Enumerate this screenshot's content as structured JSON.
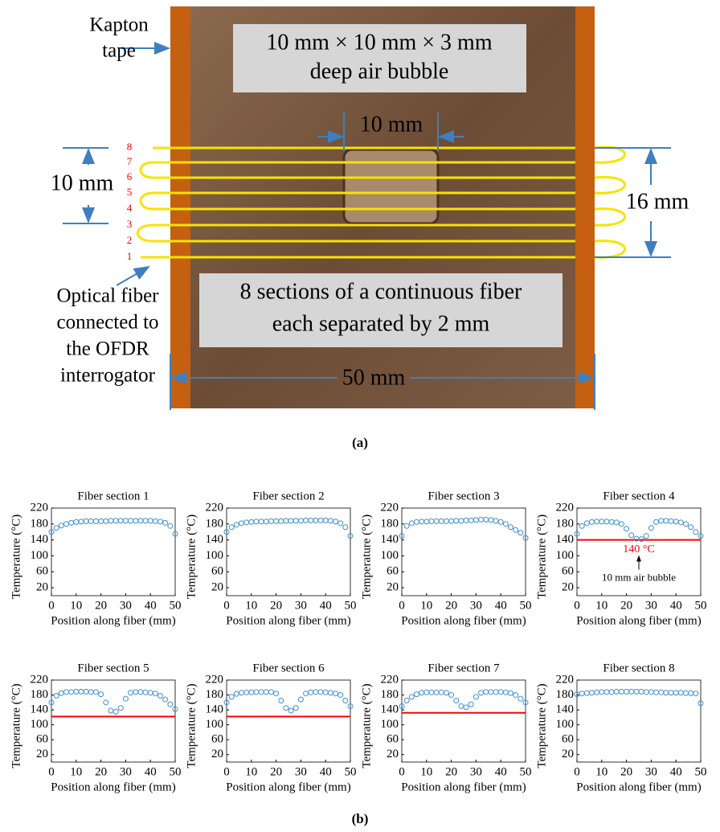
{
  "diagram": {
    "kapton": [
      "Kapton",
      "tape"
    ],
    "bubble_box": [
      "10 mm × 10 mm × 3 mm",
      "deep air bubble"
    ],
    "bubble_width": "10 mm",
    "left_span": "10 mm",
    "right_span": "16 mm",
    "bottom_span": "50 mm",
    "fiber_numbers": [
      "1",
      "2",
      "3",
      "4",
      "5",
      "6",
      "7",
      "8"
    ],
    "sections_box": [
      "8 sections of a continuous fiber",
      "each separated by 2 mm"
    ],
    "fiber_note": [
      "Optical fiber",
      "connected to",
      "the OFDR",
      "interrogator"
    ]
  },
  "captions": {
    "a": "(a)",
    "b": "(b)"
  },
  "chart_data": [
    {
      "type": "scatter",
      "title": "Fiber section 1",
      "x_label": "Position along fiber (mm)",
      "y_label": "Temperature (°C)",
      "x": [
        0,
        2,
        4,
        6,
        8,
        10,
        12,
        14,
        16,
        18,
        20,
        22,
        24,
        26,
        28,
        30,
        32,
        34,
        36,
        38,
        40,
        42,
        44,
        46,
        48,
        50
      ],
      "series": [
        {
          "color": "#3d8fd1",
          "values": [
            160,
            170,
            176,
            180,
            183,
            185,
            186,
            187,
            187,
            187,
            187,
            187,
            188,
            188,
            188,
            188,
            188,
            188,
            188,
            188,
            188,
            187,
            186,
            183,
            175,
            155
          ]
        }
      ],
      "xlim": [
        0,
        50
      ],
      "ylim": [
        0,
        220
      ],
      "xticks": [
        0,
        10,
        20,
        30,
        40,
        50
      ],
      "yticks": [
        20,
        60,
        100,
        140,
        180,
        220
      ]
    },
    {
      "type": "scatter",
      "title": "Fiber section 2",
      "x_label": "Position along fiber (mm)",
      "y_label": "Temperature (°C)",
      "x": [
        0,
        2,
        4,
        6,
        8,
        10,
        12,
        14,
        16,
        18,
        20,
        22,
        24,
        26,
        28,
        30,
        32,
        34,
        36,
        38,
        40,
        42,
        44,
        46,
        48,
        50
      ],
      "series": [
        {
          "color": "#3d8fd1",
          "values": [
            160,
            172,
            178,
            182,
            184,
            185,
            186,
            186,
            186,
            187,
            187,
            187,
            188,
            188,
            188,
            188,
            189,
            189,
            189,
            189,
            189,
            188,
            186,
            182,
            172,
            150
          ]
        }
      ],
      "xlim": [
        0,
        50
      ],
      "ylim": [
        0,
        220
      ],
      "xticks": [
        0,
        10,
        20,
        30,
        40,
        50
      ],
      "yticks": [
        20,
        60,
        100,
        140,
        180,
        220
      ]
    },
    {
      "type": "scatter",
      "title": "Fiber section 3",
      "x_label": "Position along fiber (mm)",
      "y_label": "Temperature (°C)",
      "x": [
        0,
        2,
        4,
        6,
        8,
        10,
        12,
        14,
        16,
        18,
        20,
        22,
        24,
        26,
        28,
        30,
        32,
        34,
        36,
        38,
        40,
        42,
        44,
        46,
        48,
        50
      ],
      "series": [
        {
          "color": "#3d8fd1",
          "values": [
            150,
            175,
            182,
            185,
            186,
            186,
            187,
            187,
            187,
            187,
            187,
            188,
            188,
            189,
            189,
            190,
            191,
            191,
            190,
            188,
            185,
            180,
            172,
            165,
            158,
            145
          ]
        }
      ],
      "xlim": [
        0,
        50
      ],
      "ylim": [
        0,
        220
      ],
      "xticks": [
        0,
        10,
        20,
        30,
        40,
        50
      ],
      "yticks": [
        20,
        60,
        100,
        140,
        180,
        220
      ]
    },
    {
      "type": "scatter",
      "title": "Fiber section 4",
      "x_label": "Position along fiber (mm)",
      "y_label": "Temperature (°C)",
      "x": [
        0,
        2,
        4,
        6,
        8,
        10,
        12,
        14,
        16,
        18,
        20,
        22,
        24,
        26,
        28,
        30,
        32,
        34,
        36,
        38,
        40,
        42,
        44,
        46,
        48,
        50
      ],
      "series": [
        {
          "color": "#3d8fd1",
          "values": [
            155,
            175,
            182,
            185,
            186,
            186,
            186,
            185,
            184,
            180,
            168,
            152,
            143,
            142,
            150,
            170,
            185,
            188,
            188,
            187,
            186,
            184,
            180,
            172,
            160,
            150
          ]
        }
      ],
      "xlim": [
        0,
        50
      ],
      "ylim": [
        0,
        220
      ],
      "xticks": [
        0,
        10,
        20,
        30,
        40,
        50
      ],
      "yticks": [
        20,
        60,
        100,
        140,
        180,
        220
      ],
      "reference_line": {
        "value": 140,
        "color": "#ff0000"
      },
      "annotations": [
        {
          "text": "140 °C",
          "color": "#ff0000"
        },
        {
          "text": "10 mm air bubble",
          "color": "#000000"
        }
      ]
    },
    {
      "type": "scatter",
      "title": "Fiber section 5",
      "x_label": "Position along fiber (mm)",
      "y_label": "Temperature (°C)",
      "x": [
        0,
        2,
        4,
        6,
        8,
        10,
        12,
        14,
        16,
        18,
        20,
        22,
        24,
        26,
        28,
        30,
        32,
        34,
        36,
        38,
        40,
        42,
        44,
        46,
        48,
        50
      ],
      "series": [
        {
          "color": "#3d8fd1",
          "values": [
            160,
            178,
            185,
            188,
            188,
            189,
            189,
            189,
            188,
            188,
            182,
            160,
            138,
            135,
            145,
            170,
            186,
            188,
            188,
            187,
            186,
            184,
            178,
            168,
            155,
            142
          ]
        }
      ],
      "xlim": [
        0,
        50
      ],
      "ylim": [
        0,
        220
      ],
      "xticks": [
        0,
        10,
        20,
        30,
        40,
        50
      ],
      "yticks": [
        20,
        60,
        100,
        140,
        180,
        220
      ],
      "reference_line": {
        "value": 122,
        "color": "#ff0000"
      }
    },
    {
      "type": "scatter",
      "title": "Fiber section 6",
      "x_label": "Position along fiber (mm)",
      "y_label": "Temperature (°C)",
      "x": [
        0,
        2,
        4,
        6,
        8,
        10,
        12,
        14,
        16,
        18,
        20,
        22,
        24,
        26,
        28,
        30,
        32,
        34,
        36,
        38,
        40,
        42,
        44,
        46,
        48,
        50
      ],
      "series": [
        {
          "color": "#3d8fd1",
          "values": [
            160,
            175,
            183,
            186,
            187,
            187,
            188,
            188,
            188,
            188,
            184,
            165,
            145,
            138,
            145,
            168,
            184,
            187,
            188,
            188,
            187,
            186,
            184,
            180,
            165,
            150
          ]
        }
      ],
      "xlim": [
        0,
        50
      ],
      "ylim": [
        0,
        220
      ],
      "xticks": [
        0,
        10,
        20,
        30,
        40,
        50
      ],
      "yticks": [
        20,
        60,
        100,
        140,
        180,
        220
      ],
      "reference_line": {
        "value": 122,
        "color": "#ff0000"
      }
    },
    {
      "type": "scatter",
      "title": "Fiber section 7",
      "x_label": "Position along fiber (mm)",
      "y_label": "Temperature (°C)",
      "x": [
        0,
        2,
        4,
        6,
        8,
        10,
        12,
        14,
        16,
        18,
        20,
        22,
        24,
        26,
        28,
        30,
        32,
        34,
        36,
        38,
        40,
        42,
        44,
        46,
        48,
        50
      ],
      "series": [
        {
          "color": "#3d8fd1",
          "values": [
            150,
            165,
            175,
            182,
            186,
            187,
            187,
            187,
            187,
            186,
            180,
            165,
            150,
            147,
            155,
            175,
            186,
            188,
            188,
            188,
            188,
            187,
            185,
            180,
            170,
            160
          ]
        }
      ],
      "xlim": [
        0,
        50
      ],
      "ylim": [
        0,
        220
      ],
      "xticks": [
        0,
        10,
        20,
        30,
        40,
        50
      ],
      "yticks": [
        20,
        60,
        100,
        140,
        180,
        220
      ],
      "reference_line": {
        "value": 132,
        "color": "#ff0000"
      }
    },
    {
      "type": "scatter",
      "title": "Fiber section 8",
      "x_label": "Position along fiber (mm)",
      "y_label": "Temperature (°C)",
      "x": [
        0,
        2,
        4,
        6,
        8,
        10,
        12,
        14,
        16,
        18,
        20,
        22,
        24,
        26,
        28,
        30,
        32,
        34,
        36,
        38,
        40,
        42,
        44,
        46,
        48,
        50
      ],
      "series": [
        {
          "color": "#3d8fd1",
          "values": [
            182,
            184,
            185,
            186,
            187,
            188,
            188,
            188,
            189,
            189,
            189,
            189,
            189,
            189,
            188,
            188,
            187,
            187,
            186,
            186,
            186,
            186,
            185,
            185,
            184,
            158
          ]
        }
      ],
      "xlim": [
        0,
        50
      ],
      "ylim": [
        0,
        220
      ],
      "xticks": [
        0,
        10,
        20,
        30,
        40,
        50
      ],
      "yticks": [
        20,
        60,
        100,
        140,
        180,
        220
      ]
    }
  ]
}
